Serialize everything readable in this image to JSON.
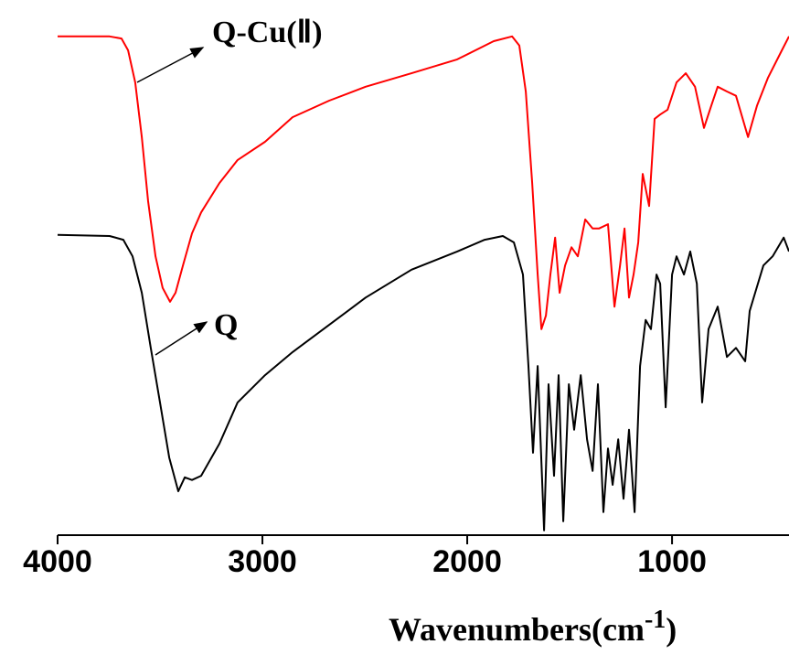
{
  "chart_data": {
    "type": "line",
    "annotations": [
      "Q-Cu(Ⅱ)",
      "Q"
    ],
    "x_label": [
      "Wavenumbers(cm",
      "-1",
      ")"
    ],
    "xlim": [
      4000,
      429
    ],
    "ylim": [
      0,
      100
    ],
    "xticks": [
      4000,
      3000,
      2000,
      1000
    ],
    "series": [
      {
        "name": "Q-Cu(Ⅱ)",
        "color": "#ff0000",
        "x": [
          4000,
          3746,
          3688,
          3656,
          3621,
          3589,
          3558,
          3522,
          3487,
          3451,
          3424,
          3388,
          3344,
          3299,
          3210,
          3121,
          2987,
          2853,
          2674,
          2496,
          2272,
          2049,
          1871,
          1781,
          1746,
          1714,
          1683,
          1656,
          1638,
          1616,
          1594,
          1571,
          1549,
          1522,
          1491,
          1460,
          1424,
          1388,
          1357,
          1313,
          1281,
          1254,
          1232,
          1210,
          1188,
          1165,
          1143,
          1112,
          1085,
          1058,
          1022,
          978,
          933,
          888,
          844,
          808,
          777,
          732,
          688,
          629,
          585,
          531,
          464,
          429
        ],
        "values": [
          93.2,
          93.2,
          92.8,
          90.6,
          84.6,
          74.4,
          62.4,
          52.1,
          46.2,
          43.6,
          45.3,
          50.4,
          56.4,
          60.3,
          65.8,
          70.1,
          73.5,
          78.1,
          81.2,
          83.8,
          86.3,
          88.9,
          92.3,
          93.2,
          91.5,
          82.9,
          65.8,
          48.7,
          38.5,
          41.0,
          48.7,
          55.6,
          45.3,
          50.4,
          53.8,
          52.1,
          59.0,
          57.3,
          57.3,
          58.1,
          42.7,
          50.4,
          57.3,
          44.4,
          48.7,
          54.7,
          67.5,
          61.5,
          77.8,
          78.6,
          79.5,
          84.6,
          86.3,
          83.8,
          76.1,
          80.3,
          83.8,
          82.9,
          82.1,
          74.4,
          80.3,
          85.5,
          90.6,
          93.2
        ]
      },
      {
        "name": "Q",
        "color": "#000000",
        "x": [
          4000,
          3746,
          3679,
          3634,
          3589,
          3545,
          3500,
          3455,
          3411,
          3379,
          3344,
          3299,
          3210,
          3121,
          2987,
          2853,
          2674,
          2496,
          2272,
          2049,
          1915,
          1826,
          1772,
          1728,
          1701,
          1679,
          1656,
          1625,
          1603,
          1576,
          1554,
          1531,
          1504,
          1478,
          1446,
          1415,
          1388,
          1362,
          1335,
          1313,
          1290,
          1263,
          1237,
          1210,
          1183,
          1156,
          1129,
          1103,
          1076,
          1058,
          1031,
          1000,
          978,
          942,
          911,
          879,
          853,
          822,
          777,
          732,
          688,
          643,
          621,
          594,
          554,
          509,
          455,
          429
        ],
        "values": [
          56.1,
          55.9,
          55.2,
          52.1,
          45.3,
          35.0,
          24.8,
          14.5,
          8.2,
          10.8,
          10.3,
          11.1,
          17.1,
          24.8,
          29.9,
          34.2,
          39.3,
          44.4,
          49.6,
          53.0,
          55.2,
          55.9,
          54.7,
          48.7,
          31.6,
          15.4,
          31.6,
          0.9,
          28.2,
          11.1,
          29.9,
          2.6,
          28.2,
          19.7,
          29.9,
          17.9,
          12.0,
          28.2,
          4.3,
          16.2,
          9.4,
          17.9,
          6.8,
          19.7,
          4.3,
          31.6,
          40.2,
          38.5,
          48.7,
          47.0,
          23.9,
          48.7,
          52.1,
          48.7,
          53.0,
          47.0,
          24.8,
          38.5,
          42.7,
          33.3,
          35.0,
          32.5,
          41.9,
          45.3,
          50.4,
          52.1,
          55.6,
          53.0
        ]
      }
    ]
  }
}
